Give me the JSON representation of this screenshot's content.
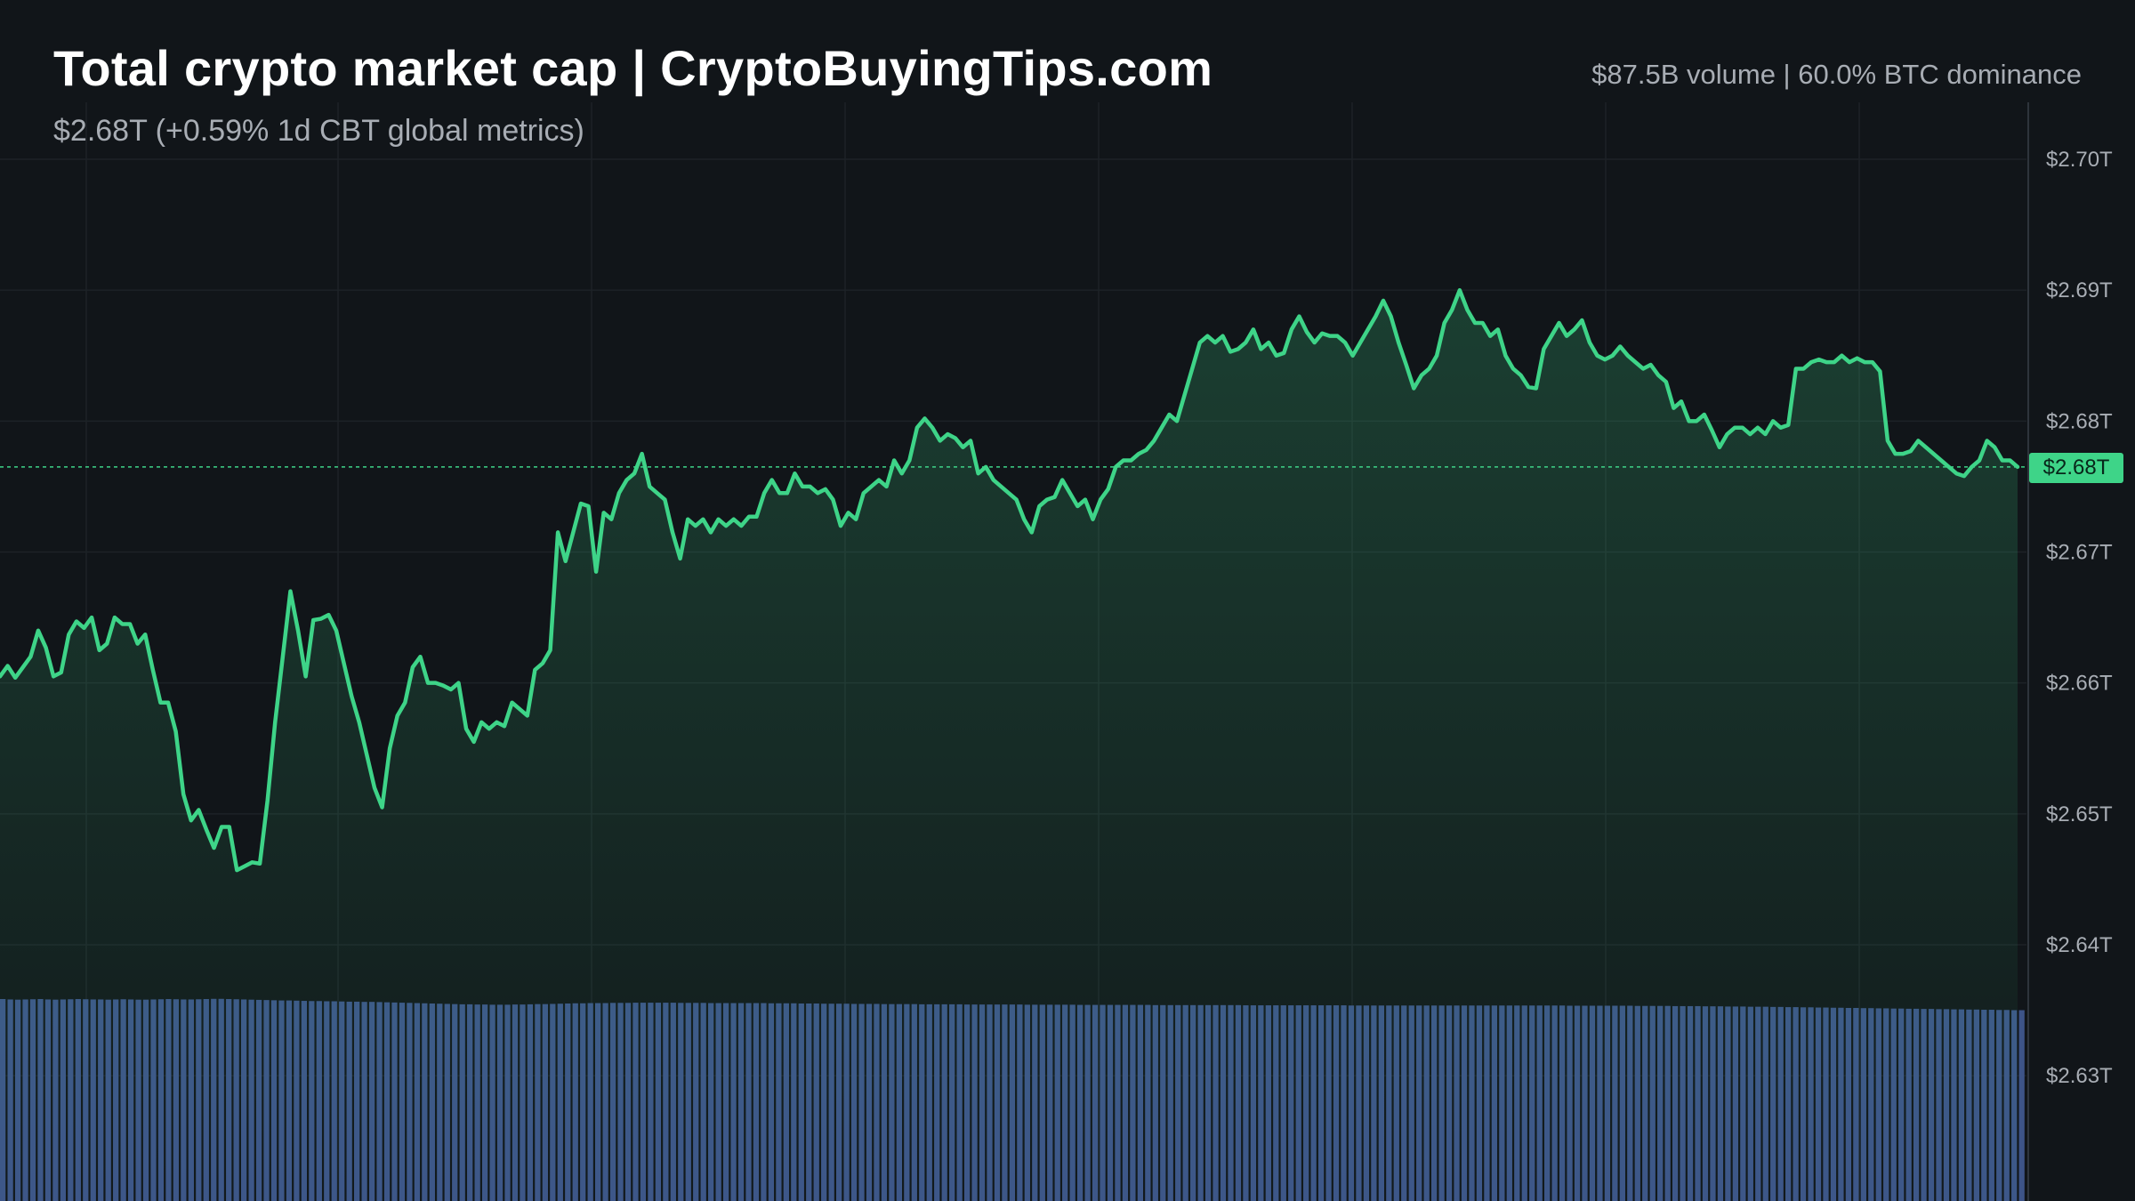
{
  "header": {
    "title": "Total crypto market cap | CryptoBuyingTips.com",
    "subtitle": "$2.68T (+0.59% 1d CBT global metrics)",
    "stats": "$87.5B volume | 60.0% BTC dominance"
  },
  "colors": {
    "background": "#111519",
    "line": "#3ed488",
    "volume": "#3d5488",
    "grid": "#1d2227",
    "axis_text": "#a8adb4"
  },
  "current_price_label": "$2.68T",
  "chart_data": {
    "type": "area",
    "title": "Total crypto market cap | CryptoBuyingTips.com",
    "subtitle": "$2.68T (+0.59% 1d CBT global metrics)",
    "ylim": [
      2.625,
      2.7045
    ],
    "y_ticks": [
      2.7,
      2.69,
      2.68,
      2.67,
      2.66,
      2.65,
      2.64,
      2.63
    ],
    "y_tick_labels": [
      "$2.70T",
      "$2.69T",
      "$2.68T",
      "$2.67T",
      "$2.66T",
      "$2.65T",
      "$2.64T",
      "$2.63T"
    ],
    "grid": true,
    "current_value": 2.6765,
    "series": [
      {
        "values": [
          2.6605,
          2.6613,
          2.6604,
          2.6612,
          2.662,
          2.664,
          2.6627,
          2.6605,
          2.6608,
          2.6637,
          2.6647,
          2.6642,
          2.665,
          2.6625,
          2.663,
          2.665,
          2.6645,
          2.6645,
          2.663,
          2.6637,
          2.661,
          2.6585,
          2.6585,
          2.6563,
          2.6515,
          2.6495,
          2.6503,
          2.6488,
          2.6474,
          2.649,
          2.649,
          2.6457,
          2.646,
          2.6463,
          2.6462,
          2.651,
          2.657,
          2.662,
          2.667,
          2.664,
          2.6605,
          2.6648,
          2.6649,
          2.6652,
          2.664,
          2.6615,
          2.659,
          2.657,
          2.6545,
          2.652,
          2.6505,
          2.655,
          2.6575,
          2.6585,
          2.6612,
          2.662,
          2.66,
          2.66,
          2.6598,
          2.6595,
          2.66,
          2.6565,
          2.6555,
          2.657,
          2.6565,
          2.657,
          2.6567,
          2.6585,
          2.658,
          2.6575,
          2.661,
          2.6615,
          2.6625,
          2.6715,
          2.6693,
          2.6715,
          2.6737,
          2.6735,
          2.6685,
          2.673,
          2.6725,
          2.6745,
          2.6755,
          2.676,
          2.6775,
          2.675,
          2.6745,
          2.674,
          2.6715,
          2.6695,
          2.6725,
          2.672,
          2.6725,
          2.6715,
          2.6725,
          2.672,
          2.6725,
          2.672,
          2.6727,
          2.6727,
          2.6745,
          2.6755,
          2.6745,
          2.6745,
          2.676,
          2.675,
          2.675,
          2.6745,
          2.6748,
          2.674,
          2.672,
          2.673,
          2.6725,
          2.6745,
          2.675,
          2.6755,
          2.675,
          2.677,
          2.676,
          2.677,
          2.6795,
          2.6802,
          2.6795,
          2.6785,
          2.679,
          2.6787,
          2.678,
          2.6785,
          2.676,
          2.6765,
          2.6755,
          2.675,
          2.6745,
          2.674,
          2.6725,
          2.6715,
          2.6735,
          2.674,
          2.6742,
          2.6755,
          2.6745,
          2.6735,
          2.674,
          2.6725,
          2.674,
          2.6748,
          2.6765,
          2.677,
          2.677,
          2.6775,
          2.6778,
          2.6785,
          2.6795,
          2.6805,
          2.68,
          2.682,
          2.684,
          2.686,
          2.6865,
          2.686,
          2.6865,
          2.6853,
          2.6855,
          2.686,
          2.687,
          2.6855,
          2.686,
          2.685,
          2.6852,
          2.687,
          2.688,
          2.6868,
          2.686,
          2.6867,
          2.6865,
          2.6865,
          2.686,
          2.685,
          2.686,
          2.687,
          2.688,
          2.6892,
          2.688,
          2.686,
          2.6843,
          2.6825,
          2.6835,
          2.684,
          2.685,
          2.6875,
          2.6885,
          2.69,
          2.6885,
          2.6875,
          2.6875,
          2.6865,
          2.687,
          2.685,
          2.684,
          2.6835,
          2.6826,
          2.6825,
          2.6855,
          2.6865,
          2.6875,
          2.6865,
          2.687,
          2.6877,
          2.686,
          2.685,
          2.6847,
          2.685,
          2.6857,
          2.685,
          2.6845,
          2.684,
          2.6843,
          2.6835,
          2.683,
          2.681,
          2.6815,
          2.68,
          2.68,
          2.6805,
          2.6793,
          2.678,
          2.679,
          2.6795,
          2.6795,
          2.679,
          2.6795,
          2.679,
          2.68,
          2.6795,
          2.6797,
          2.684,
          2.684,
          2.6845,
          2.6847,
          2.6845,
          2.6845,
          2.685,
          2.6845,
          2.6848,
          2.6845,
          2.6845,
          2.6838,
          2.6785,
          2.6775,
          2.6775,
          2.6777,
          2.6785,
          2.678,
          2.6775,
          2.677,
          2.6765,
          2.676,
          2.6758,
          2.6765,
          2.677,
          2.6785,
          2.678,
          2.677,
          2.677,
          2.6765
        ]
      }
    ],
    "volume_series": [
      1.0,
      0.998,
      0.997,
      0.998,
      0.999,
      1.0,
      0.998,
      0.997,
      0.998,
      0.999,
      1.0,
      0.999,
      0.998,
      0.998,
      0.997,
      0.998,
      0.999,
      0.998,
      0.997,
      0.997,
      0.998,
      0.999,
      1.0,
      0.999,
      0.998,
      0.998,
      0.999,
      1.0,
      1.001,
      1.001,
      1.0,
      0.999,
      0.998,
      0.997,
      0.996,
      0.995,
      0.994,
      0.993,
      0.993,
      0.992,
      0.991,
      0.99,
      0.99,
      0.989,
      0.989,
      0.988,
      0.987,
      0.987,
      0.986,
      0.986,
      0.985,
      0.984,
      0.983,
      0.982,
      0.981,
      0.98,
      0.979,
      0.978,
      0.977,
      0.976,
      0.975,
      0.974,
      0.974,
      0.973,
      0.973,
      0.972,
      0.972,
      0.972,
      0.973,
      0.973,
      0.974,
      0.975,
      0.975,
      0.976,
      0.977,
      0.978,
      0.979,
      0.979,
      0.98,
      0.98,
      0.98,
      0.981,
      0.981,
      0.981,
      0.982,
      0.982,
      0.982,
      0.982,
      0.982,
      0.982,
      0.981,
      0.981,
      0.981,
      0.981,
      0.98,
      0.98,
      0.98,
      0.98,
      0.98,
      0.98,
      0.98,
      0.98,
      0.979,
      0.979,
      0.979,
      0.979,
      0.978,
      0.978,
      0.978,
      0.977,
      0.977,
      0.977,
      0.977,
      0.976,
      0.976,
      0.976,
      0.976,
      0.975,
      0.975,
      0.975,
      0.975,
      0.975,
      0.974,
      0.974,
      0.974,
      0.974,
      0.974,
      0.974,
      0.973,
      0.973,
      0.973,
      0.973,
      0.973,
      0.973,
      0.973,
      0.973,
      0.972,
      0.972,
      0.972,
      0.972,
      0.972,
      0.972,
      0.972,
      0.971,
      0.971,
      0.971,
      0.971,
      0.971,
      0.971,
      0.971,
      0.971,
      0.971,
      0.971,
      0.97,
      0.97,
      0.97,
      0.97,
      0.97,
      0.97,
      0.97,
      0.97,
      0.97,
      0.97,
      0.97,
      0.97,
      0.969,
      0.969,
      0.969,
      0.969,
      0.969,
      0.969,
      0.969,
      0.969,
      0.969,
      0.969,
      0.969,
      0.969,
      0.969,
      0.969,
      0.968,
      0.968,
      0.968,
      0.968,
      0.968,
      0.968,
      0.968,
      0.968,
      0.968,
      0.968,
      0.968,
      0.968,
      0.968,
      0.968,
      0.968,
      0.968,
      0.968,
      0.968,
      0.968,
      0.968,
      0.968,
      0.968,
      0.968,
      0.968,
      0.968,
      0.968,
      0.968,
      0.968,
      0.968,
      0.967,
      0.967,
      0.967,
      0.967,
      0.967,
      0.967,
      0.967,
      0.967,
      0.967,
      0.966,
      0.966,
      0.966,
      0.966,
      0.966,
      0.965,
      0.965,
      0.965,
      0.965,
      0.964,
      0.964,
      0.964,
      0.963,
      0.963,
      0.963,
      0.962,
      0.962,
      0.962,
      0.961,
      0.961,
      0.96,
      0.96,
      0.959,
      0.959,
      0.958,
      0.958,
      0.957,
      0.957,
      0.956,
      0.956,
      0.955,
      0.955,
      0.954,
      0.954,
      0.953,
      0.953,
      0.952,
      0.952,
      0.951,
      0.951,
      0.95,
      0.95,
      0.949,
      0.949,
      0.948,
      0.948,
      0.947,
      0.947,
      0.946,
      0.946,
      0.945,
      0.945
    ]
  }
}
